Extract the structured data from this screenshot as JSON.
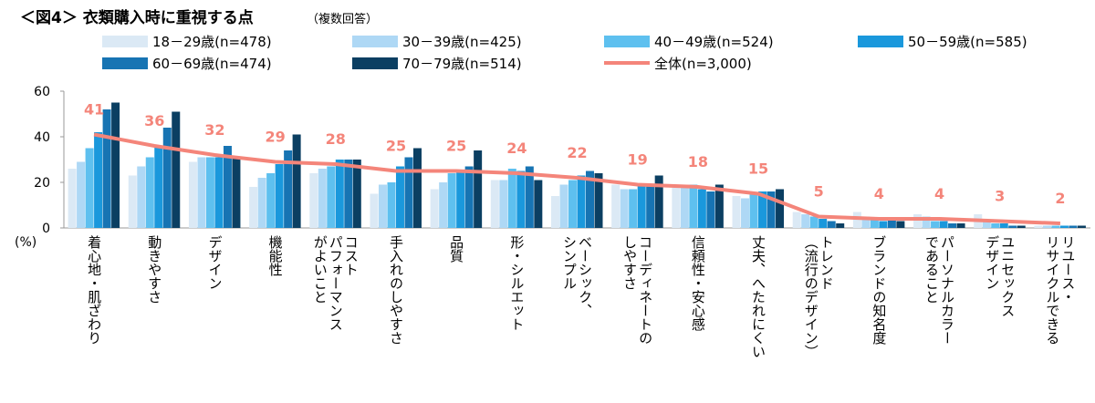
{
  "chart_data": {
    "type": "bar",
    "title": "＜図4＞ 衣類購入時に重視する点",
    "subtitle": "（複数回答）",
    "ylabel": "(%)",
    "ylim": [
      0,
      60
    ],
    "yticks": [
      0,
      20,
      40,
      60
    ],
    "grid": false,
    "legend_placement": "top",
    "categories": [
      "着心地・肌ざわり",
      "動きやすさ",
      "デザイン",
      "機能性",
      "コストパフォーマンスがよいこと",
      "手入れのしやすさ",
      "品質",
      "形・シルエット",
      "ベーシック、シンプル",
      "コーディネートのしやすさ",
      "信頼性・安心感",
      "丈夫、へたれにくい",
      "トレンド（流行のデザイン）",
      "ブランドの知名度",
      "パーソナルカラーであること",
      "ユニセックスデザイン",
      "リユース・リサイクルできる"
    ],
    "category_lines": [
      [
        "着心地・肌ざわり"
      ],
      [
        "動きやすさ"
      ],
      [
        "デザイン"
      ],
      [
        "機能性"
      ],
      [
        "コスト",
        "パフォーマンス",
        "がよいこと"
      ],
      [
        "手入れのしやすさ"
      ],
      [
        "品質"
      ],
      [
        "形・シルエット"
      ],
      [
        "ベーシック、",
        "シンプル"
      ],
      [
        "コーディネートの",
        "しやすさ"
      ],
      [
        "信頼性・安心感"
      ],
      [
        "丈夫、へたれにくい"
      ],
      [
        "トレンド",
        "（流行のデザイン）"
      ],
      [
        "ブランドの知名度"
      ],
      [
        "パーソナルカラー",
        "であること"
      ],
      [
        "ユニセックス",
        "デザイン"
      ],
      [
        "リユース・",
        "リサイクルできる"
      ]
    ],
    "series": [
      {
        "name": "18－29歳(n=478)",
        "color": "#dbe9f5",
        "values": [
          26,
          23,
          29,
          18,
          24,
          15,
          17,
          21,
          14,
          19,
          19,
          14,
          7,
          7,
          6,
          6,
          1
        ]
      },
      {
        "name": "30－39歳(n=425)",
        "color": "#aed8f5",
        "values": [
          29,
          27,
          31,
          22,
          26,
          19,
          20,
          21,
          19,
          17,
          19,
          13,
          6,
          5,
          5,
          3,
          1
        ]
      },
      {
        "name": "40－49歳(n=524)",
        "color": "#5ec0ef",
        "values": [
          35,
          31,
          31,
          24,
          27,
          20,
          24,
          26,
          21,
          17,
          19,
          15,
          5,
          4,
          3,
          2,
          1
        ]
      },
      {
        "name": "50－59歳(n=585)",
        "color": "#1a98dc",
        "values": [
          42,
          36,
          31,
          28,
          30,
          27,
          25,
          25,
          23,
          19,
          17,
          16,
          4,
          3,
          3,
          2,
          1
        ]
      },
      {
        "name": "60－69歳(n=474)",
        "color": "#1774b3",
        "values": [
          52,
          44,
          36,
          34,
          30,
          31,
          27,
          27,
          25,
          19,
          16,
          16,
          3,
          4,
          2,
          1,
          1
        ]
      },
      {
        "name": "70－79歳(n=514)",
        "color": "#0b3f62",
        "values": [
          55,
          51,
          31,
          41,
          30,
          35,
          34,
          21,
          24,
          23,
          19,
          17,
          2,
          3,
          2,
          1,
          1
        ]
      }
    ],
    "total": {
      "name": "全体(n=3,000)",
      "color": "#f4857a",
      "values": [
        41,
        36,
        32,
        29,
        28,
        25,
        25,
        24,
        22,
        19,
        18,
        15,
        5,
        4,
        4,
        3,
        2
      ]
    }
  }
}
